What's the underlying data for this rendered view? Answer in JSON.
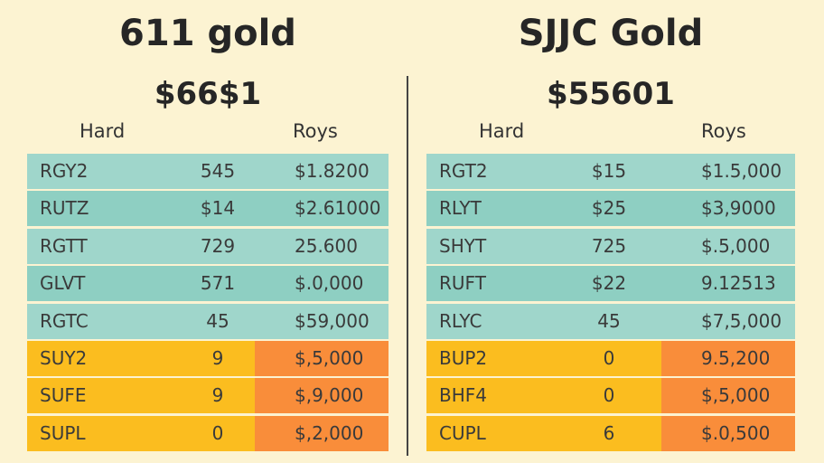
{
  "left": {
    "title": "611 gold",
    "price": "$66$1",
    "header_col1": "Hard",
    "header_col2": "Roys",
    "rows": [
      {
        "name": "RGY2",
        "qty": "545",
        "value": "$1.8200",
        "style": "teal"
      },
      {
        "name": "RUTZ",
        "qty": "$14",
        "value": "$2.61000",
        "style": "teal"
      },
      {
        "name": "RGTT",
        "qty": "729",
        "value": "25.600",
        "style": "teal"
      },
      {
        "name": "GLVT",
        "qty": "571",
        "value": "$.0,000",
        "style": "teal"
      },
      {
        "name": "RGTC",
        "qty": "45",
        "value": "$59,000",
        "style": "teal"
      },
      {
        "name": "SUY2",
        "qty": "9",
        "value": "$,5,000",
        "style": "yellow"
      },
      {
        "name": "SUFE",
        "qty": "9",
        "value": "$,9,000",
        "style": "yellow"
      },
      {
        "name": "SUPL",
        "qty": "0",
        "value": "$,2,000",
        "style": "yellow"
      }
    ]
  },
  "right": {
    "title": "SJJC Gold",
    "price": "$55601",
    "header_col1": "Hard",
    "header_col2": "Roys",
    "rows": [
      {
        "name": "RGT2",
        "qty": "$15",
        "value": "$1.5,000",
        "style": "teal"
      },
      {
        "name": "RLYT",
        "qty": "$25",
        "value": "$3,9000",
        "style": "teal"
      },
      {
        "name": "SHYT",
        "qty": "725",
        "value": "$.5,000",
        "style": "teal"
      },
      {
        "name": "RUFT",
        "qty": "$22",
        "value": "9.12513",
        "style": "teal"
      },
      {
        "name": "RLYC",
        "qty": "45",
        "value": "$7,5,000",
        "style": "teal"
      },
      {
        "name": "BUP2",
        "qty": "0",
        "value": "9.5,200",
        "style": "yellow"
      },
      {
        "name": "BHF4",
        "qty": "0",
        "value": "$,5,000",
        "style": "yellow"
      },
      {
        "name": "CUPL",
        "qty": "6",
        "value": "$.0,500",
        "style": "yellow"
      }
    ]
  }
}
